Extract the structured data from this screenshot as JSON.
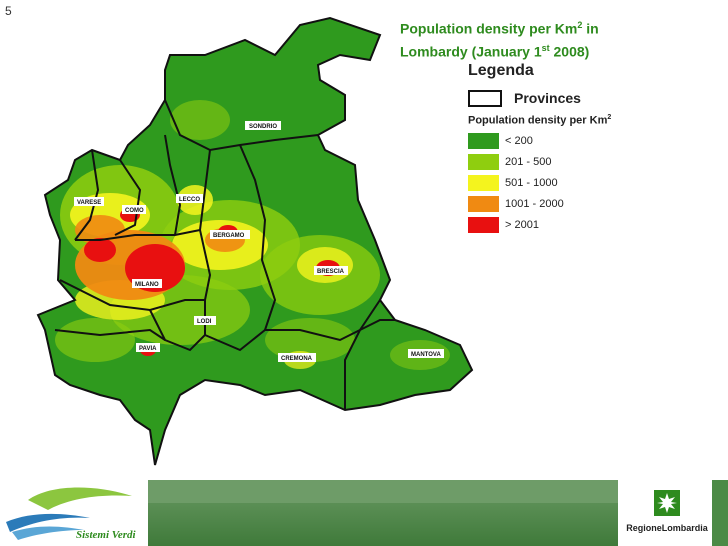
{
  "slide": {
    "number": "5"
  },
  "title": {
    "line1_prefix": "Population density per Km",
    "line1_sup": "2",
    "line1_suffix": " in",
    "line2_prefix": "Lombardy (January 1",
    "line2_sup": "st",
    "line2_suffix": " 2008)"
  },
  "legend": {
    "title": "Legenda",
    "provinces_label": "Provinces",
    "density_title_prefix": "Population density per Km",
    "density_title_sup": "2",
    "classes": [
      {
        "label": "< 200",
        "color": "#2f9a1e"
      },
      {
        "label": "201 - 500",
        "color": "#8fce0f"
      },
      {
        "label": "501 - 1000",
        "color": "#f4f41e"
      },
      {
        "label": "1001 - 2000",
        "color": "#f08a12"
      },
      {
        "label": "> 2001",
        "color": "#e81010"
      }
    ]
  },
  "map": {
    "provinces": [
      "SONDRIO",
      "VARESE",
      "COMO",
      "LECCO",
      "BERGAMO",
      "BRESCIA",
      "MILANO",
      "LODI",
      "PAVIA",
      "CREMONA",
      "MANTOVA"
    ],
    "border_color": "#111111"
  },
  "footer": {
    "left_logo_text": "Sistemi Verdi",
    "right_logo_text": "RegioneLombardia"
  }
}
